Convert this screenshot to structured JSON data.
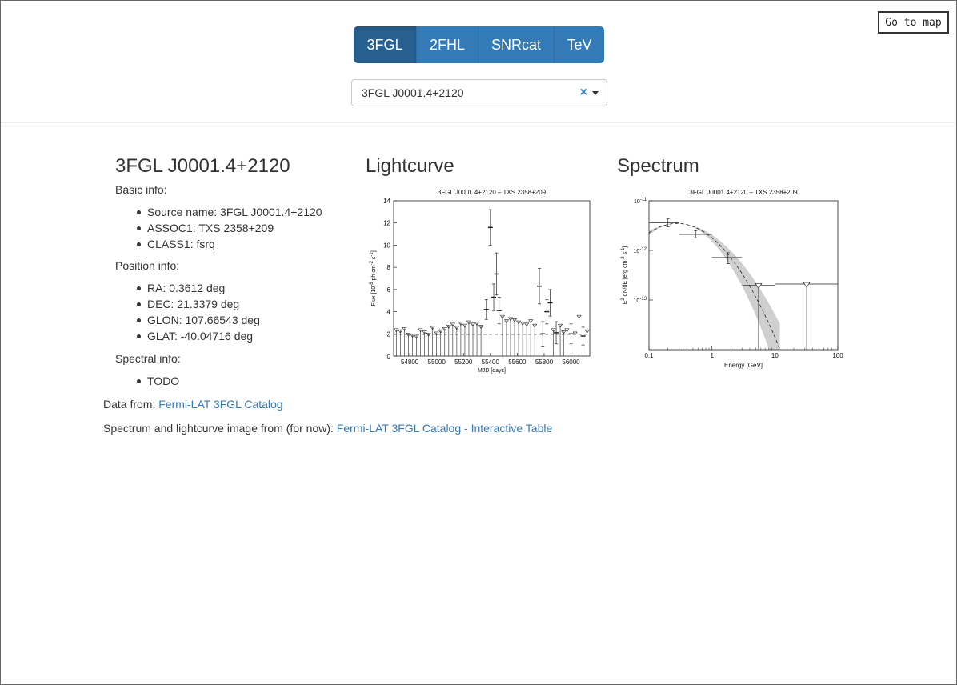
{
  "header": {
    "go_to_map": "Go to map",
    "tabs": [
      {
        "label": "3FGL",
        "active": true
      },
      {
        "label": "2FHL",
        "active": false
      },
      {
        "label": "SNRcat",
        "active": false
      },
      {
        "label": "TeV",
        "active": false
      }
    ],
    "select": {
      "value": "3FGL J0001.4+2120",
      "clear_icon": "×"
    }
  },
  "source": {
    "title": "3FGL J0001.4+2120",
    "basic_label": "Basic info:",
    "basic_items": [
      "Source name: 3FGL J0001.4+2120",
      "ASSOC1: TXS 2358+209",
      "CLASS1: fsrq"
    ],
    "position_label": "Position info:",
    "position_items": [
      "RA: 0.3612 deg",
      "DEC: 21.3379 deg",
      "GLON: 107.66543 deg",
      "GLAT: -40.04716 deg"
    ],
    "spectral_label": "Spectral info:",
    "spectral_items": [
      "TODO"
    ]
  },
  "footer": {
    "data_from_prefix": "Data from:",
    "data_from_link": "Fermi-LAT 3FGL Catalog",
    "images_prefix": "Spectrum and lightcurve image from (for now):",
    "images_link": "Fermi-LAT 3FGL Catalog - Interactive Table"
  },
  "chart_data": [
    {
      "type": "scatter",
      "heading": "Lightcurve",
      "title": "3FGL J0001.4+2120 – TXS 2358+209",
      "xlabel": "MJD [days]",
      "ylabel": "Flux [10^-8 ph cm^-2 s^-1]",
      "xlim": [
        54680,
        56140
      ],
      "ylim": [
        0,
        14
      ],
      "xticks": [
        54800,
        55000,
        55200,
        55400,
        55600,
        55800,
        56000
      ],
      "yticks": [
        0,
        2,
        4,
        6,
        8,
        10,
        12,
        14
      ],
      "baseline": 1.95,
      "detections": [
        {
          "x": 55370,
          "y": 4.2,
          "err": 0.9
        },
        {
          "x": 55400,
          "y": 11.6,
          "err": 1.6
        },
        {
          "x": 55425,
          "y": 5.3,
          "err": 1.2
        },
        {
          "x": 55445,
          "y": 7.4,
          "err": 1.9
        },
        {
          "x": 55465,
          "y": 4.1,
          "err": 1.2
        },
        {
          "x": 55765,
          "y": 6.3,
          "err": 1.6
        },
        {
          "x": 55790,
          "y": 2.0,
          "err": 1.1
        },
        {
          "x": 55820,
          "y": 4.0,
          "err": 1.1
        },
        {
          "x": 55845,
          "y": 4.8,
          "err": 1.2
        },
        {
          "x": 55890,
          "y": 2.1,
          "err": 1.0
        },
        {
          "x": 56000,
          "y": 2.0,
          "err": 0.9
        },
        {
          "x": 56090,
          "y": 1.8,
          "err": 0.8
        }
      ],
      "upper_limits": [
        54700,
        54730,
        54760,
        54790,
        54820,
        54850,
        54880,
        54910,
        54940,
        54970,
        55000,
        55030,
        55060,
        55090,
        55120,
        55150,
        55180,
        55210,
        55240,
        55270,
        55300,
        55330,
        55490,
        55520,
        55550,
        55580,
        55610,
        55640,
        55670,
        55700,
        55730,
        55870,
        55920,
        55945,
        55970,
        56030,
        56060,
        56120
      ],
      "upper_limit_values": [
        2.4,
        2.3,
        2.5,
        2.0,
        1.9,
        1.8,
        2.4,
        2.2,
        2.0,
        2.6,
        2.1,
        2.3,
        2.5,
        2.7,
        2.9,
        2.6,
        3.0,
        2.8,
        3.1,
        2.9,
        3.0,
        2.7,
        3.6,
        3.2,
        3.4,
        3.3,
        3.1,
        3.0,
        2.9,
        3.2,
        2.8,
        2.4,
        2.8,
        2.2,
        2.4,
        2.1,
        3.6,
        2.3
      ]
    },
    {
      "type": "scatter",
      "heading": "Spectrum",
      "title": "3FGL J0001.4+2120 – TXS 2358+209",
      "xlabel": "Energy [GeV]",
      "ylabel": "E^2 dN/dE [erg cm^-2 s^-1]",
      "xscale": "log",
      "yscale": "log",
      "xlim": [
        0.1,
        100
      ],
      "ylim": [
        1e-14,
        1e-11
      ],
      "xticks": [
        0.1,
        1,
        10,
        100
      ],
      "xtick_labels": [
        "0.1",
        "1",
        "10",
        "100"
      ],
      "yticks": [
        1e-13,
        1e-12,
        1e-11
      ],
      "ytick_labels": [
        "10^-13",
        "10^-12",
        "10^-11"
      ],
      "points": [
        {
          "x": 0.2,
          "y": 3.6e-12,
          "xlo": 0.1,
          "xhi": 0.3,
          "elo": 3e-12,
          "ehi": 4.3e-12
        },
        {
          "x": 0.55,
          "y": 2.1e-12,
          "xlo": 0.3,
          "xhi": 1.0,
          "elo": 1.8e-12,
          "ehi": 2.5e-12
        },
        {
          "x": 1.8,
          "y": 7.2e-13,
          "xlo": 1.0,
          "xhi": 3.0,
          "elo": 5.4e-13,
          "ehi": 9e-13
        }
      ],
      "upper_limits": [
        {
          "x": 5.5,
          "y": 2e-13,
          "xlo": 3.0,
          "xhi": 10
        },
        {
          "x": 32,
          "y": 2.1e-13,
          "xlo": 10,
          "xhi": 100
        }
      ],
      "model": {
        "norm": 3.5e-12,
        "peak": 0.28,
        "curv": 0.95
      },
      "band": {
        "model_low": 0.8,
        "model_high": 1.25
      }
    }
  ]
}
